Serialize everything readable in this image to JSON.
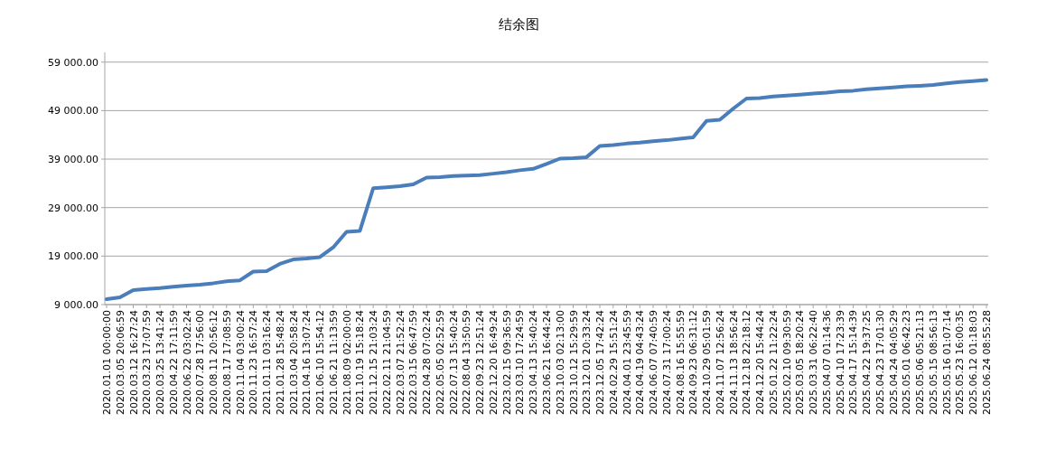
{
  "chart_data": {
    "type": "line",
    "title": "结余图",
    "categories": [
      "2020.01.01 00:00:00",
      "2020.03.05 20:06:59",
      "2020.03.12 16:27:24",
      "2020.03.23 17:07:59",
      "2020.03.25 13:41:24",
      "2020.04.22 17:11:59",
      "2020.06.22 03:02:24",
      "2020.07.28 17:56:00",
      "2020.08.11 20:56:12",
      "2020.08.17 17:08:59",
      "2020.11.04 03:00:24",
      "2020.11.23 16:57:24",
      "2021.01.11 03:16:24",
      "2021.01.28 15:48:24",
      "2021.03.04 20:58:24",
      "2021.04.16 13:07:24",
      "2021.06.10 15:54:12",
      "2021.06.21 11:13:59",
      "2021.08.09 02:00:00",
      "2021.10.19 15:18:24",
      "2021.12.15 21:03:24",
      "2022.02.11 21:04:59",
      "2022.03.07 21:52:24",
      "2022.03.15 06:47:59",
      "2022.04.28 07:02:24",
      "2022.05.05 02:52:59",
      "2022.07.13 15:40:24",
      "2022.08.04 13:50:59",
      "2022.09.23 12:51:24",
      "2022.12.20 16:49:24",
      "2023.02.15 09:36:59",
      "2023.03.10 17:24:59",
      "2023.04.13 15:40:24",
      "2023.06.21 16:44:24",
      "2023.10.03 02:13:00",
      "2023.10.12 15:29:59",
      "2023.12.01 20:33:24",
      "2023.12.05 17:42:24",
      "2024.02.29 15:51:24",
      "2024.04.01 23:45:59",
      "2024.04.19 04:43:24",
      "2024.06.07 07:40:59",
      "2024.07.31 17:00:24",
      "2024.08.16 15:55:59",
      "2024.09.23 06:31:12",
      "2024.10.29 05:01:59",
      "2024.11.07 12:56:24",
      "2024.11.13 18:56:24",
      "2024.12.18 22:18:12",
      "2024.12.20 15:44:24",
      "2025.01.22 11:22:24",
      "2025.02.10 09:30:59",
      "2025.03.05 18:20:24",
      "2025.03.31 06:22:40",
      "2025.04.07 01:14:36",
      "2025.04.10 17:23:39",
      "2025.04.17 15:14:39",
      "2025.04.22 19:37:25",
      "2025.04.23 17:01:30",
      "2025.04.24 04:05:29",
      "2025.05.01 06:42:23",
      "2025.05.06 05:21:13",
      "2025.05.15 08:56:13",
      "2025.05.16 01:07:14",
      "2025.05.23 16:00:35",
      "2025.06.12 01:18:03",
      "2025.06.24 08:55:28"
    ],
    "series": [
      {
        "color": "#4a7ebb",
        "values": [
          10100,
          10500,
          12000,
          12200,
          12400,
          12700,
          12900,
          13100,
          13400,
          13800,
          14000,
          15800,
          15900,
          17400,
          18300,
          18500,
          18800,
          20800,
          24000,
          24200,
          33000,
          33200,
          33400,
          33800,
          35200,
          35300,
          35500,
          35600,
          35700,
          36000,
          36300,
          36700,
          37000,
          38000,
          39100,
          39200,
          39400,
          41700,
          41900,
          42200,
          42400,
          42700,
          42900,
          43200,
          43500,
          46900,
          47100,
          49400,
          51500,
          51600,
          51900,
          52100,
          52300,
          52500,
          52700,
          53000,
          53100,
          53400,
          53600,
          53800,
          54000,
          54100,
          54300,
          54600,
          54900,
          55100,
          55300
        ]
      }
    ],
    "ylim": [
      9000,
      61000
    ],
    "yticks": [
      {
        "value": 9000,
        "label": "9 000.00"
      },
      {
        "value": 19000,
        "label": "19 000.00"
      },
      {
        "value": 29000,
        "label": "29 000.00"
      },
      {
        "value": 39000,
        "label": "39 000.00"
      },
      {
        "value": 49000,
        "label": "49 000.00"
      },
      {
        "value": 59000,
        "label": "59 000.00"
      }
    ],
    "grid": "y",
    "marker": "none",
    "line_style": "solid"
  }
}
